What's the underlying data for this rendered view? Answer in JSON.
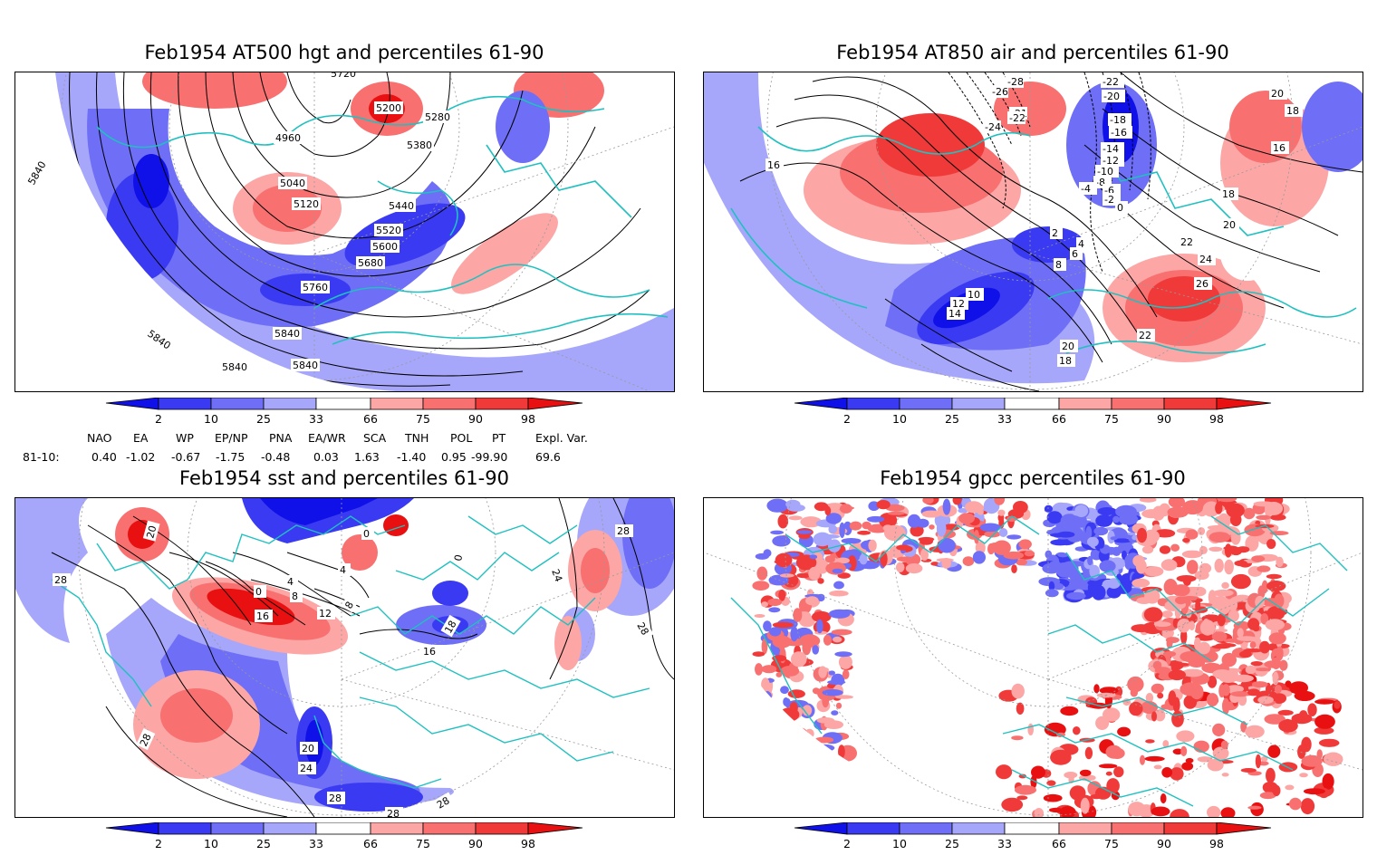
{
  "panels": [
    {
      "title": "Feb1954 AT500 hgt and percentiles 61-90",
      "contour_labels": [
        "4960",
        "5040",
        "5120",
        "5200",
        "5280",
        "5380",
        "5440",
        "5520",
        "5600",
        "5680",
        "5760",
        "5840",
        "5840",
        "5840",
        "5840",
        "5720",
        "5840"
      ]
    },
    {
      "title": "Feb1954 AT850 air and percentiles 61-90",
      "contour_labels": [
        "-28",
        "-26",
        "-22",
        "-20",
        "-18",
        "-16",
        "-14",
        "-12",
        "-10",
        "-8",
        "-6",
        "-4",
        "-2",
        "0",
        "2",
        "4",
        "6",
        "8",
        "10",
        "12",
        "14",
        "16",
        "16",
        "18",
        "18",
        "18",
        "20",
        "20",
        "20",
        "22",
        "22",
        "24",
        "26",
        "-21",
        "-22",
        "-24"
      ]
    },
    {
      "title": "Feb1954 sst and percentiles 61-90",
      "contour_labels": [
        "20",
        "28",
        "0",
        "4",
        "8",
        "12",
        "16",
        "16",
        "18",
        "20",
        "24",
        "28",
        "28",
        "28",
        "28",
        "28",
        "24",
        "28",
        "4",
        "8",
        "0",
        "0"
      ]
    },
    {
      "title": "Feb1954 gpcc percentiles 61-90",
      "contour_labels": []
    }
  ],
  "colorbar": {
    "ticks": [
      "2",
      "10",
      "25",
      "33",
      "66",
      "75",
      "90",
      "98"
    ],
    "colors": {
      "below2": "#1010e8",
      "b2_10": "#3a3af2",
      "b10_25": "#6e6ef6",
      "b25_33": "#a6a6fa",
      "mid": "#ffffff",
      "a66_75": "#fca6a6",
      "a75_90": "#f87070",
      "a90_98": "#f03a3a",
      "above98": "#e81010"
    }
  },
  "indices": {
    "headers": [
      "NAO",
      "EA",
      "WP",
      "EP/NP",
      "PNA",
      "EA/WR",
      "SCA",
      "TNH",
      "POL",
      "PT",
      "Expl. Var."
    ],
    "row_label": "81-10:",
    "values": [
      "0.40",
      "-1.02",
      "-0.67",
      "-1.75",
      "-0.48",
      "0.03",
      "1.63",
      "-1.40",
      "0.95",
      "-99.90",
      "69.6"
    ]
  },
  "colors": {
    "coast": "#20c0c0",
    "contour": "#000000",
    "grid": "#9a9a9a"
  }
}
